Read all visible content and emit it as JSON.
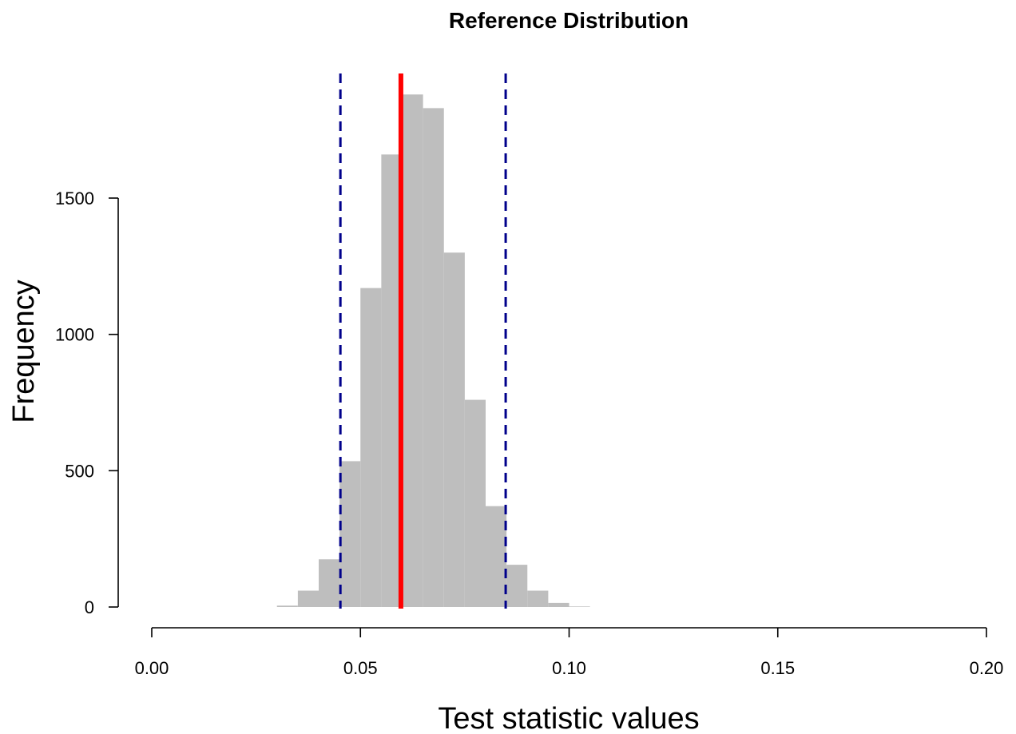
{
  "chart_data": {
    "type": "bar",
    "title": "Reference Distribution",
    "xlabel": "Test statistic values",
    "ylabel": "Frequency",
    "xlim": [
      0,
      0.2
    ],
    "ylim": [
      0,
      1900
    ],
    "x_ticks": [
      "0.00",
      "0.05",
      "0.10",
      "0.15",
      "0.20"
    ],
    "y_ticks": [
      "0",
      "500",
      "1000",
      "1500"
    ],
    "bin_width": 0.005,
    "bins": [
      {
        "start": 0.03,
        "value": 5
      },
      {
        "start": 0.035,
        "value": 60
      },
      {
        "start": 0.04,
        "value": 175
      },
      {
        "start": 0.045,
        "value": 535
      },
      {
        "start": 0.05,
        "value": 1170
      },
      {
        "start": 0.055,
        "value": 1660
      },
      {
        "start": 0.06,
        "value": 1880
      },
      {
        "start": 0.065,
        "value": 1830
      },
      {
        "start": 0.07,
        "value": 1300
      },
      {
        "start": 0.075,
        "value": 760
      },
      {
        "start": 0.08,
        "value": 370
      },
      {
        "start": 0.085,
        "value": 155
      },
      {
        "start": 0.09,
        "value": 60
      },
      {
        "start": 0.095,
        "value": 15
      },
      {
        "start": 0.1,
        "value": 2
      }
    ],
    "reference_lines": [
      {
        "x": 0.0597,
        "style": "solid",
        "color": "#ff0000"
      },
      {
        "x": 0.0452,
        "style": "dashed",
        "color": "#00008b"
      },
      {
        "x": 0.0848,
        "style": "dashed",
        "color": "#00008b"
      }
    ],
    "bar_color": "#bebebe",
    "grid": false,
    "legend": "none"
  }
}
